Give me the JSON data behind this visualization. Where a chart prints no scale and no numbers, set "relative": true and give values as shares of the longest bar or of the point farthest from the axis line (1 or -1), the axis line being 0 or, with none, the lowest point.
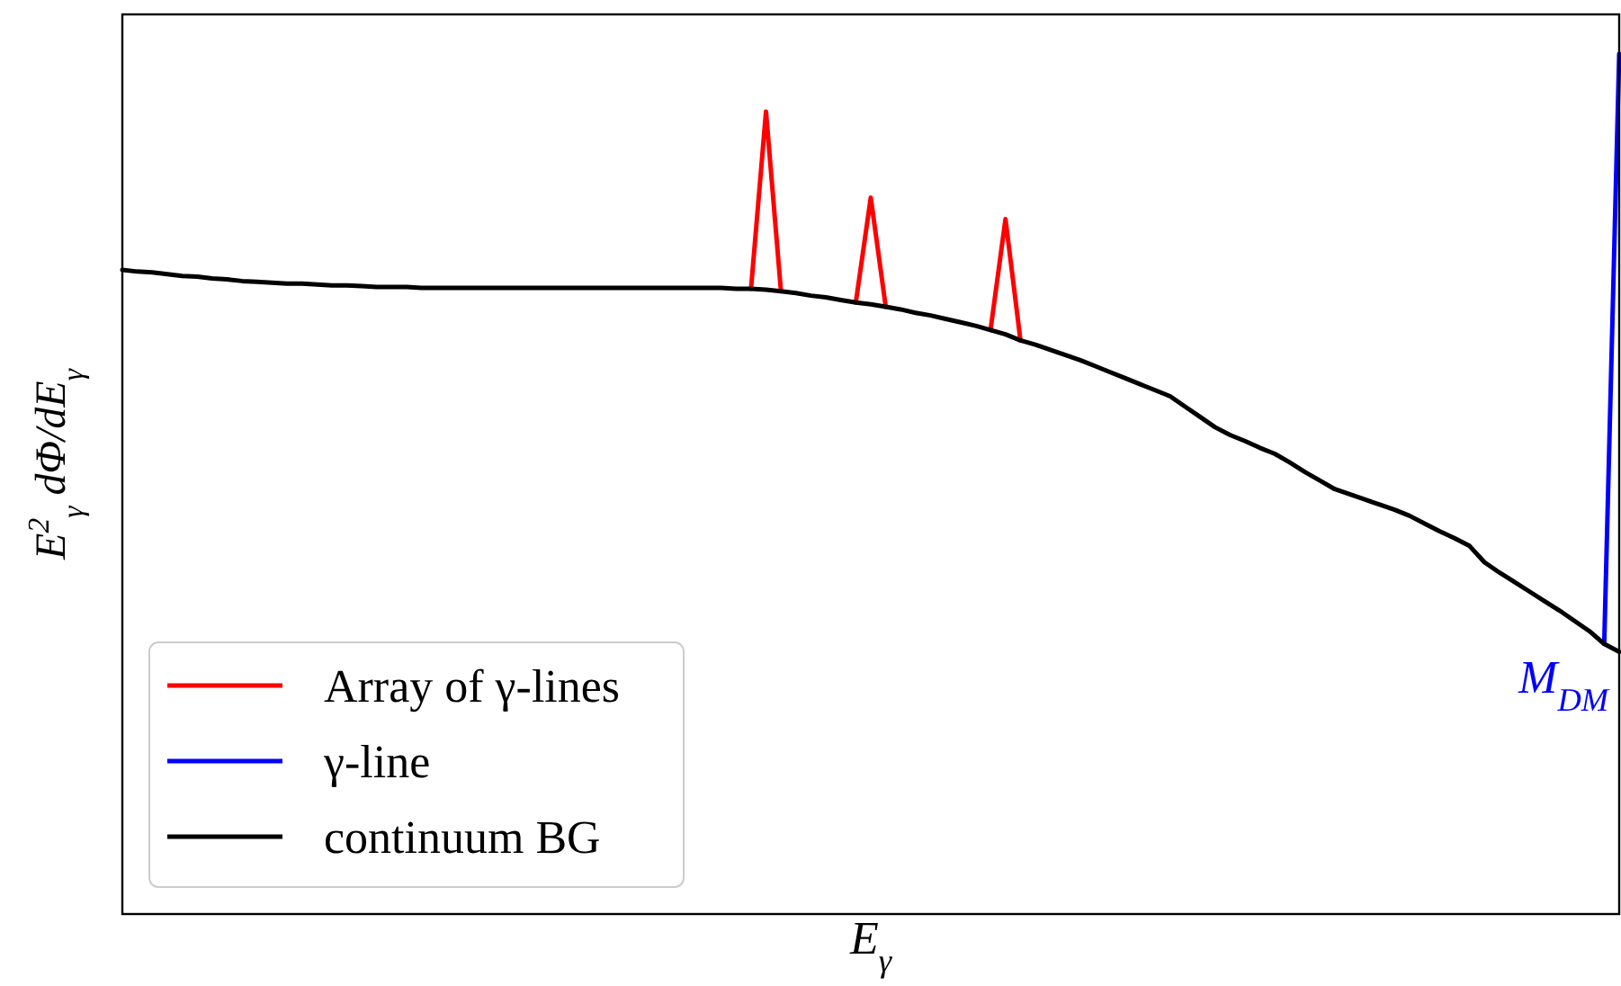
{
  "chart_data": {
    "type": "line",
    "relative": true,
    "xlabel": "E$_{γ}$",
    "ylabel": "E$^{2}$$_{γ}$ dΦ/dE$_{γ}$",
    "categories": [
      null,
      null,
      null,
      null,
      null,
      null,
      null,
      null,
      null,
      null,
      null,
      null,
      null,
      null,
      null,
      null,
      null,
      null,
      null,
      null,
      null,
      null,
      null,
      null,
      null,
      null,
      null,
      null,
      null,
      null,
      null,
      null,
      null,
      null,
      null,
      null,
      null,
      null,
      null,
      null,
      null,
      null,
      null,
      null,
      null,
      null,
      null,
      null,
      null,
      null,
      null,
      null,
      null,
      null,
      null,
      null,
      null,
      null,
      null,
      null,
      null,
      null,
      null,
      null,
      null,
      null,
      null,
      null,
      null,
      null,
      null,
      null,
      null,
      null,
      null,
      null,
      null,
      null,
      null,
      null,
      null,
      null,
      null,
      null,
      null,
      null,
      null,
      null,
      null,
      null,
      null,
      null,
      null,
      null,
      null,
      null,
      null,
      null,
      null,
      null,
      null
    ],
    "series": [
      {
        "name": "Array of γ-lines",
        "color": "#ff0000",
        "values": [
          null,
          null,
          null,
          null,
          null,
          null,
          null,
          null,
          null,
          null,
          null,
          null,
          null,
          null,
          null,
          null,
          null,
          null,
          null,
          null,
          null,
          null,
          null,
          null,
          null,
          null,
          null,
          null,
          null,
          null,
          null,
          null,
          null,
          null,
          null,
          null,
          null,
          null,
          null,
          null,
          null,
          null,
          0.727,
          0.933,
          0.724,
          null,
          null,
          null,
          null,
          0.711,
          0.833,
          0.706,
          null,
          null,
          null,
          null,
          null,
          null,
          0.679,
          0.808,
          0.667,
          null,
          null,
          null,
          null,
          null,
          null,
          null,
          null,
          null,
          null,
          null,
          null,
          null,
          null,
          null,
          null,
          null,
          null,
          null,
          null,
          null,
          null,
          null,
          null,
          null,
          null,
          null,
          null,
          null,
          null,
          null,
          null,
          null,
          null,
          null,
          null,
          null,
          null,
          null,
          null
        ]
      },
      {
        "name": "γ-line",
        "color": "#0000ff",
        "values": [
          null,
          null,
          null,
          null,
          null,
          null,
          null,
          null,
          null,
          null,
          null,
          null,
          null,
          null,
          null,
          null,
          null,
          null,
          null,
          null,
          null,
          null,
          null,
          null,
          null,
          null,
          null,
          null,
          null,
          null,
          null,
          null,
          null,
          null,
          null,
          null,
          null,
          null,
          null,
          null,
          null,
          null,
          null,
          null,
          null,
          null,
          null,
          null,
          null,
          null,
          null,
          null,
          null,
          null,
          null,
          null,
          null,
          null,
          null,
          null,
          null,
          null,
          null,
          null,
          null,
          null,
          null,
          null,
          null,
          null,
          null,
          null,
          null,
          null,
          null,
          null,
          null,
          null,
          null,
          null,
          null,
          null,
          null,
          null,
          null,
          null,
          null,
          null,
          null,
          null,
          null,
          null,
          null,
          null,
          null,
          null,
          null,
          null,
          null,
          0.314,
          1
        ]
      },
      {
        "name": "continuum BG",
        "color": "#000000",
        "values": [
          0.749,
          0.747,
          0.746,
          0.744,
          0.742,
          0.741,
          0.739,
          0.738,
          0.736,
          0.735,
          0.734,
          0.733,
          0.733,
          0.732,
          0.731,
          0.731,
          0.73,
          0.729,
          0.729,
          0.729,
          0.728,
          0.728,
          0.728,
          0.728,
          0.728,
          0.728,
          0.728,
          0.728,
          0.728,
          0.728,
          0.728,
          0.728,
          0.728,
          0.728,
          0.728,
          0.728,
          0.728,
          0.728,
          0.728,
          0.728,
          0.728,
          0.727,
          0.727,
          0.726,
          0.724,
          0.722,
          0.719,
          0.717,
          0.714,
          0.711,
          0.709,
          0.706,
          0.703,
          0.699,
          0.696,
          0.692,
          0.688,
          0.684,
          0.679,
          0.674,
          0.667,
          0.662,
          0.656,
          0.65,
          0.644,
          0.637,
          0.63,
          0.623,
          0.616,
          0.609,
          0.602,
          0.59,
          0.578,
          0.566,
          0.557,
          0.55,
          0.542,
          0.535,
          0.525,
          0.514,
          0.504,
          0.494,
          0.488,
          0.482,
          0.476,
          0.47,
          0.463,
          0.454,
          0.445,
          0.437,
          0.428,
          0.409,
          0.397,
          0.386,
          0.375,
          0.364,
          0.353,
          0.341,
          0.329,
          0.314,
          0.305
        ]
      }
    ],
    "annotations": [
      "M$_{DM}$"
    ],
    "legend": "bottom left"
  }
}
